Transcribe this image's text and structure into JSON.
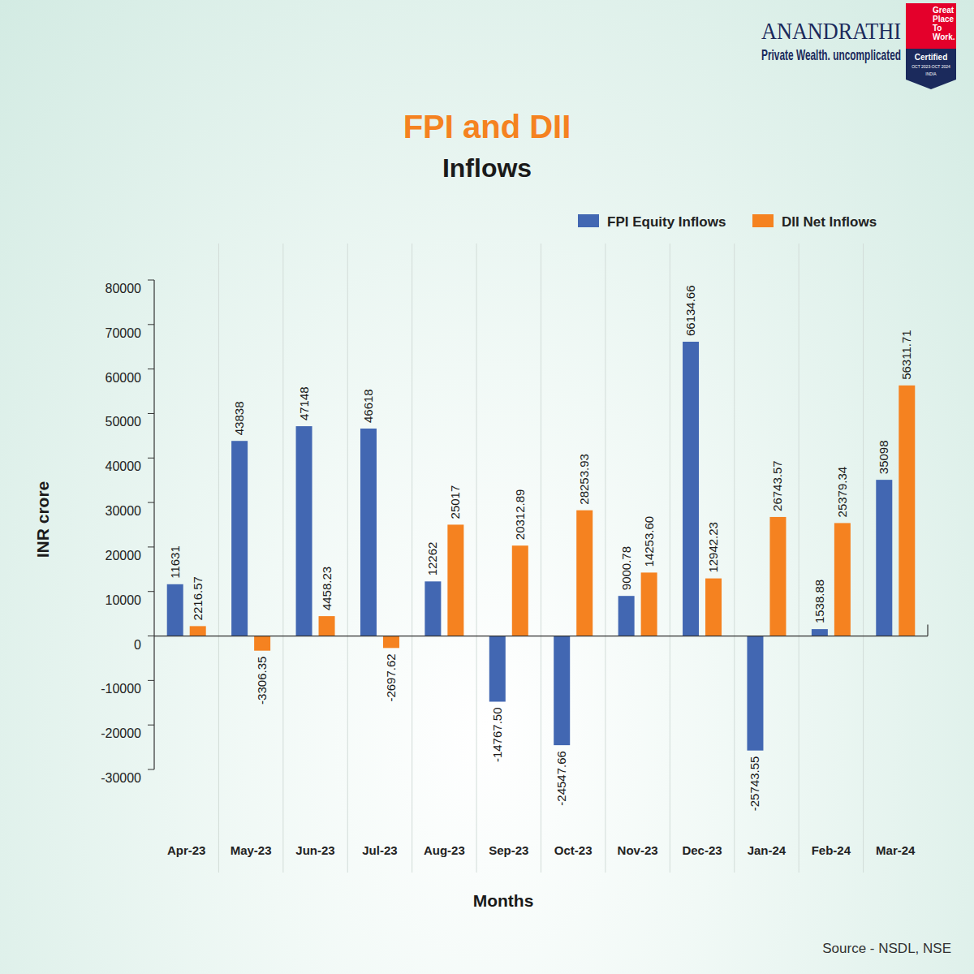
{
  "chart_data": {
    "type": "bar",
    "title": "FPI and DII",
    "subtitle": "Inflows",
    "x_label": "Months",
    "y_label": "INR crore",
    "annotations": [
      "Source - NSDL, NSE",
      "ANANDRATHI",
      "Private Wealth. uncomplicated",
      "Great Place To Work.",
      "Certified",
      "OCT 2023-OCT 2024",
      "INDIA"
    ],
    "categories": [
      "Apr-23",
      "May-23",
      "Jun-23",
      "Jul-23",
      "Aug-23",
      "Sep-23",
      "Oct-23",
      "Nov-23",
      "Dec-23",
      "Jan-24",
      "Feb-24",
      "Mar-24"
    ],
    "series": [
      {
        "name": "FPI Equity Inflows",
        "color": "#4267b2",
        "values": [
          11631,
          43838,
          47148,
          46618,
          12262,
          -14767.5,
          -24547.66,
          9000.78,
          66134.66,
          -25743.55,
          1538.88,
          35098
        ],
        "value_labels": [
          "11631",
          "43838",
          "47148",
          "46618",
          "12262",
          "-14767.50",
          "-24547.66",
          "9000.78",
          "66134.66",
          "-25743.55",
          "1538.88",
          "35098"
        ]
      },
      {
        "name": "DII Net Inflows",
        "color": "#f58220",
        "values": [
          2216.57,
          -3306.35,
          4458.23,
          -2697.62,
          25017,
          20312.89,
          28253.93,
          14253.6,
          12942.23,
          26743.57,
          25379.34,
          56311.71
        ],
        "value_labels": [
          "2216.57",
          "-3306.35",
          "4458.23",
          "-2697.62",
          "25017",
          "20312.89",
          "28253.93",
          "14253.60",
          "12942.23",
          "26743.57",
          "25379.34",
          "56311.71"
        ]
      }
    ],
    "ylim": [
      -30000,
      80000
    ],
    "yticks": [
      -30000,
      -20000,
      -10000,
      0,
      10000,
      20000,
      30000,
      40000,
      50000,
      60000,
      70000,
      80000
    ],
    "grid": true,
    "legend": "upper right",
    "data_labels": true
  }
}
